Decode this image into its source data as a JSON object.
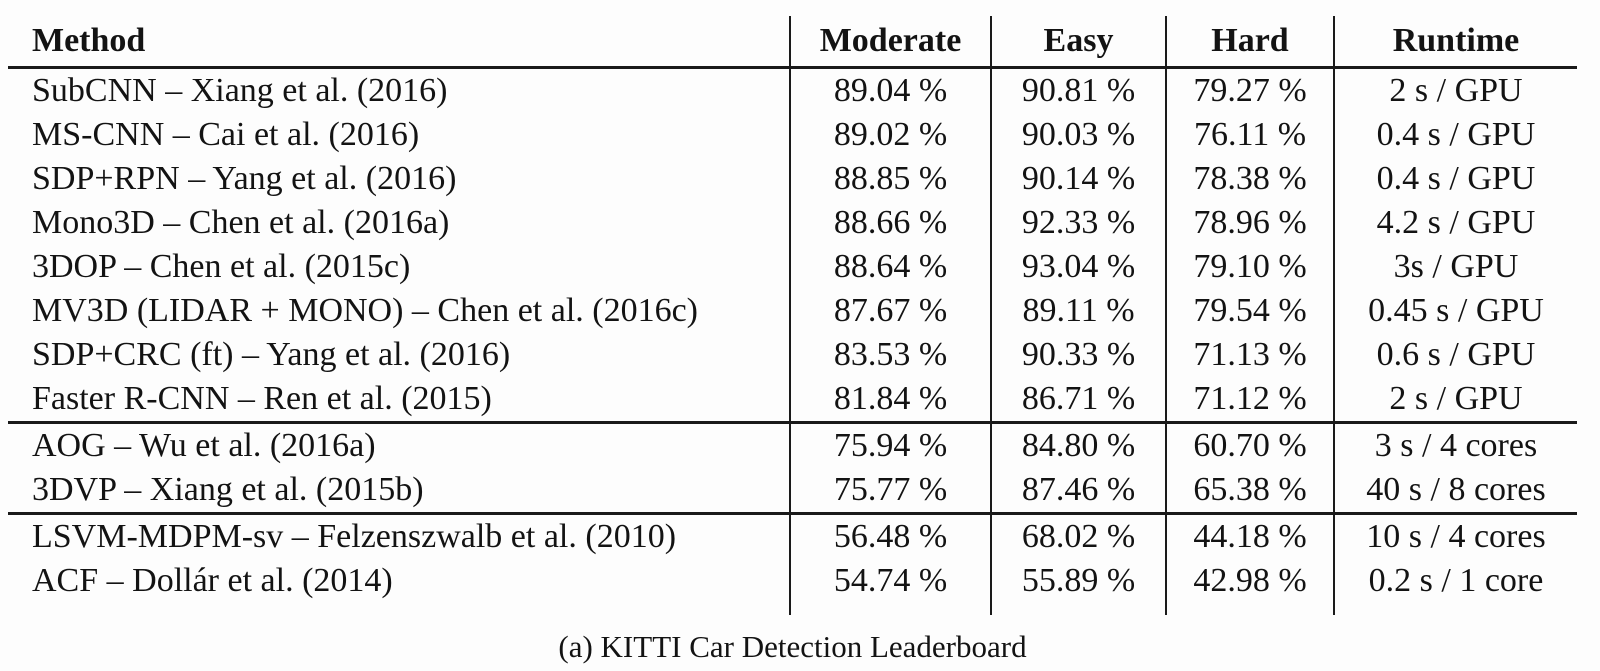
{
  "caption": "(a) KITTI Car Detection Leaderboard",
  "colors": {
    "background": "#fdfdfd",
    "text": "#131313",
    "rule": "#1a1a1a"
  },
  "table": {
    "columns": [
      "Method",
      "Moderate",
      "Easy",
      "Hard",
      "Runtime"
    ],
    "groups": [
      {
        "rows": [
          {
            "method": "SubCNN – Xiang et al. (2016)",
            "moderate": "89.04 %",
            "easy": "90.81 %",
            "hard": "79.27 %",
            "runtime": "2 s / GPU"
          },
          {
            "method": "MS-CNN – Cai et al. (2016)",
            "moderate": "89.02 %",
            "easy": "90.03 %",
            "hard": "76.11 %",
            "runtime": "0.4 s / GPU"
          },
          {
            "method": "SDP+RPN – Yang et al. (2016)",
            "moderate": "88.85 %",
            "easy": "90.14 %",
            "hard": "78.38 %",
            "runtime": "0.4 s / GPU"
          },
          {
            "method": "Mono3D – Chen et al. (2016a)",
            "moderate": "88.66 %",
            "easy": "92.33 %",
            "hard": "78.96 %",
            "runtime": "4.2 s / GPU"
          },
          {
            "method": "3DOP – Chen et al. (2015c)",
            "moderate": "88.64 %",
            "easy": "93.04 %",
            "hard": "79.10 %",
            "runtime": "3s / GPU"
          },
          {
            "method": "MV3D (LIDAR + MONO) – Chen et al. (2016c)",
            "moderate": "87.67 %",
            "easy": "89.11 %",
            "hard": "79.54 %",
            "runtime": "0.45 s / GPU"
          },
          {
            "method": "SDP+CRC (ft) – Yang et al. (2016)",
            "moderate": "83.53 %",
            "easy": "90.33 %",
            "hard": "71.13 %",
            "runtime": "0.6 s / GPU"
          },
          {
            "method": "Faster R-CNN – Ren et al. (2015)",
            "moderate": "81.84 %",
            "easy": "86.71 %",
            "hard": "71.12 %",
            "runtime": "2 s / GPU"
          }
        ]
      },
      {
        "rows": [
          {
            "method": "AOG – Wu et al. (2016a)",
            "moderate": "75.94 %",
            "easy": "84.80 %",
            "hard": "60.70 %",
            "runtime": "3 s / 4 cores"
          },
          {
            "method": "3DVP – Xiang et al. (2015b)",
            "moderate": "75.77 %",
            "easy": "87.46 %",
            "hard": "65.38 %",
            "runtime": "40 s / 8 cores"
          }
        ]
      },
      {
        "rows": [
          {
            "method": "LSVM-MDPM-sv – Felzenszwalb et al. (2010)",
            "moderate": "56.48 %",
            "easy": "68.02 %",
            "hard": "44.18 %",
            "runtime": "10 s / 4 cores"
          },
          {
            "method": "ACF – Dollár et al. (2014)",
            "moderate": "54.74 %",
            "easy": "55.89 %",
            "hard": "42.98 %",
            "runtime": "0.2 s / 1 core"
          }
        ]
      }
    ]
  }
}
